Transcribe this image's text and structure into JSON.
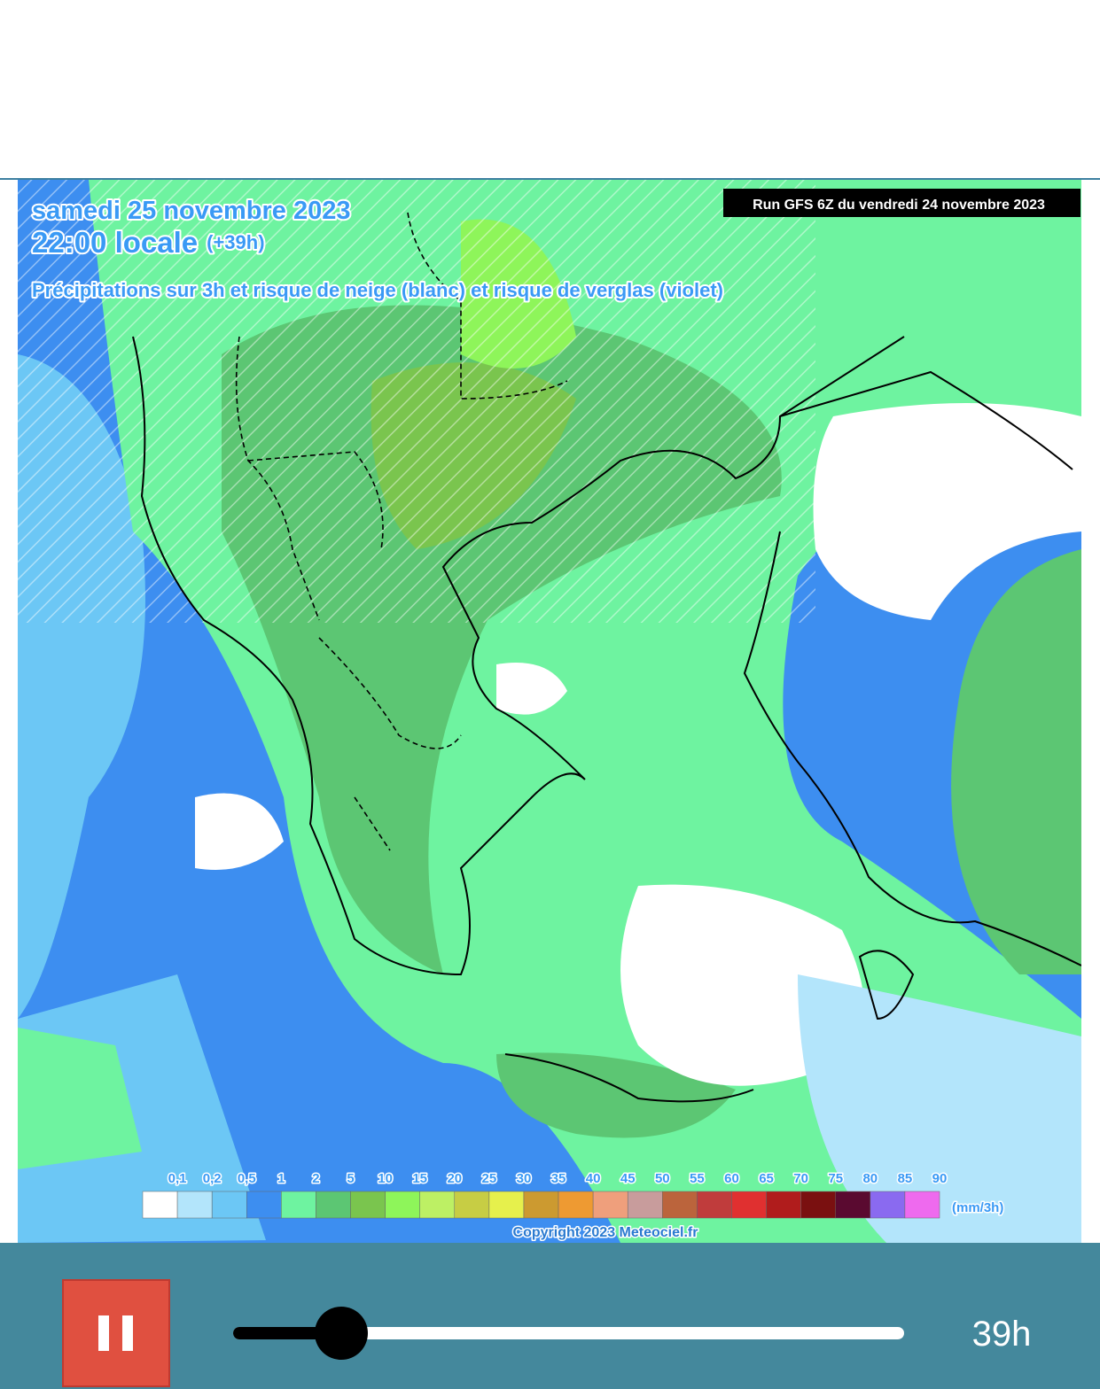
{
  "map": {
    "date": "samedi 25 novembre 2023",
    "time": "22:00 locale",
    "lead": "(+39h)",
    "description": "Précipitations sur 3h et risque de neige (blanc) et risque de verglas (violet)",
    "run": "Run GFS 6Z du vendredi 24 novembre 2023",
    "legend": {
      "labels": [
        "0,1",
        "0,2",
        "0,5",
        "1",
        "2",
        "5",
        "10",
        "15",
        "20",
        "25",
        "30",
        "35",
        "40",
        "45",
        "50",
        "55",
        "60",
        "65",
        "70",
        "75",
        "80",
        "85",
        "90"
      ],
      "colors": [
        "#ffffff",
        "#b3e5fb",
        "#6cc7f5",
        "#3d8ef0",
        "#6ef3a0",
        "#5cc673",
        "#7ac54e",
        "#8ef55a",
        "#bdf064",
        "#c7cd44",
        "#e6f04c",
        "#cc9a30",
        "#ee9a32",
        "#ef9f7c",
        "#c89c9c",
        "#bb643c",
        "#c03c3c",
        "#e03030",
        "#b01c1c",
        "#7a1010",
        "#5a0a30",
        "#8a6af0",
        "#ee6aee"
      ],
      "unit": "(mm/3h)"
    },
    "copyright": "Copyright 2023 Meteociel.fr"
  },
  "player": {
    "time_label": "39h"
  }
}
